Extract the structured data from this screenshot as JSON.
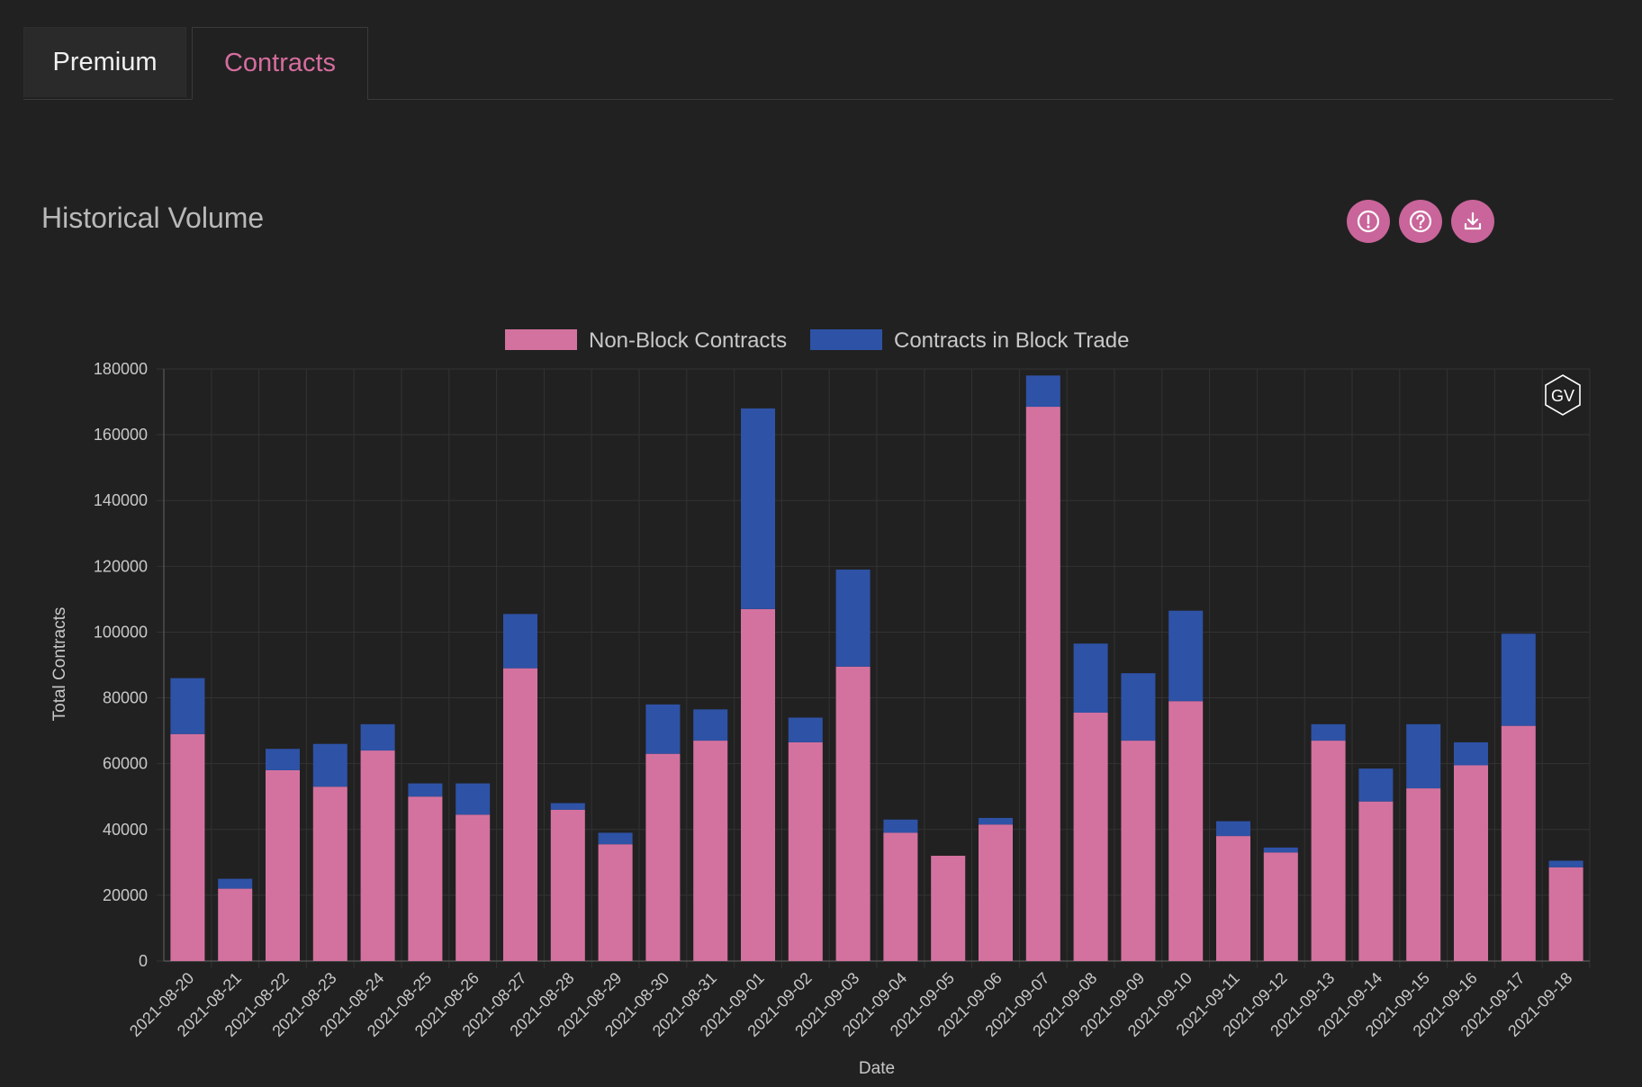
{
  "tabs": [
    {
      "label": "Premium",
      "active": false
    },
    {
      "label": "Contracts",
      "active": true
    }
  ],
  "title": "Historical Volume",
  "toolbar": {
    "icons": [
      "alert-icon",
      "help-icon",
      "download-icon"
    ]
  },
  "watermark": "GV",
  "colors": {
    "accent": "#d56d9e",
    "non_block": "#d4729f",
    "block": "#2e52a6",
    "background": "#212121"
  },
  "chart_data": {
    "type": "bar",
    "stacked": true,
    "title": "",
    "xlabel": "Date",
    "ylabel": "Total Contracts",
    "ylim": [
      0,
      180000
    ],
    "yticks": [
      0,
      20000,
      40000,
      60000,
      80000,
      100000,
      120000,
      140000,
      160000,
      180000
    ],
    "grid": true,
    "legend_position": "top-center",
    "categories": [
      "2021-08-20",
      "2021-08-21",
      "2021-08-22",
      "2021-08-23",
      "2021-08-24",
      "2021-08-25",
      "2021-08-26",
      "2021-08-27",
      "2021-08-28",
      "2021-08-29",
      "2021-08-30",
      "2021-08-31",
      "2021-09-01",
      "2021-09-02",
      "2021-09-03",
      "2021-09-04",
      "2021-09-05",
      "2021-09-06",
      "2021-09-07",
      "2021-09-08",
      "2021-09-09",
      "2021-09-10",
      "2021-09-11",
      "2021-09-12",
      "2021-09-13",
      "2021-09-14",
      "2021-09-15",
      "2021-09-16",
      "2021-09-17",
      "2021-09-18"
    ],
    "series": [
      {
        "name": "Non-Block Contracts",
        "color": "#d4729f",
        "values": [
          69000,
          22000,
          58000,
          53000,
          64000,
          50000,
          44500,
          89000,
          46000,
          35500,
          63000,
          67000,
          107000,
          66500,
          89500,
          39000,
          32000,
          41500,
          168500,
          75500,
          67000,
          79000,
          38000,
          33000,
          67000,
          48500,
          52500,
          59500,
          71500,
          28500
        ]
      },
      {
        "name": "Contracts in Block Trade",
        "color": "#2e52a6",
        "values": [
          17000,
          3000,
          6500,
          13000,
          8000,
          4000,
          9500,
          16500,
          2000,
          3500,
          15000,
          9500,
          61000,
          7500,
          29500,
          4000,
          0,
          2000,
          9500,
          21000,
          20500,
          27500,
          4500,
          1500,
          5000,
          10000,
          19500,
          7000,
          28000,
          2000
        ]
      }
    ]
  }
}
